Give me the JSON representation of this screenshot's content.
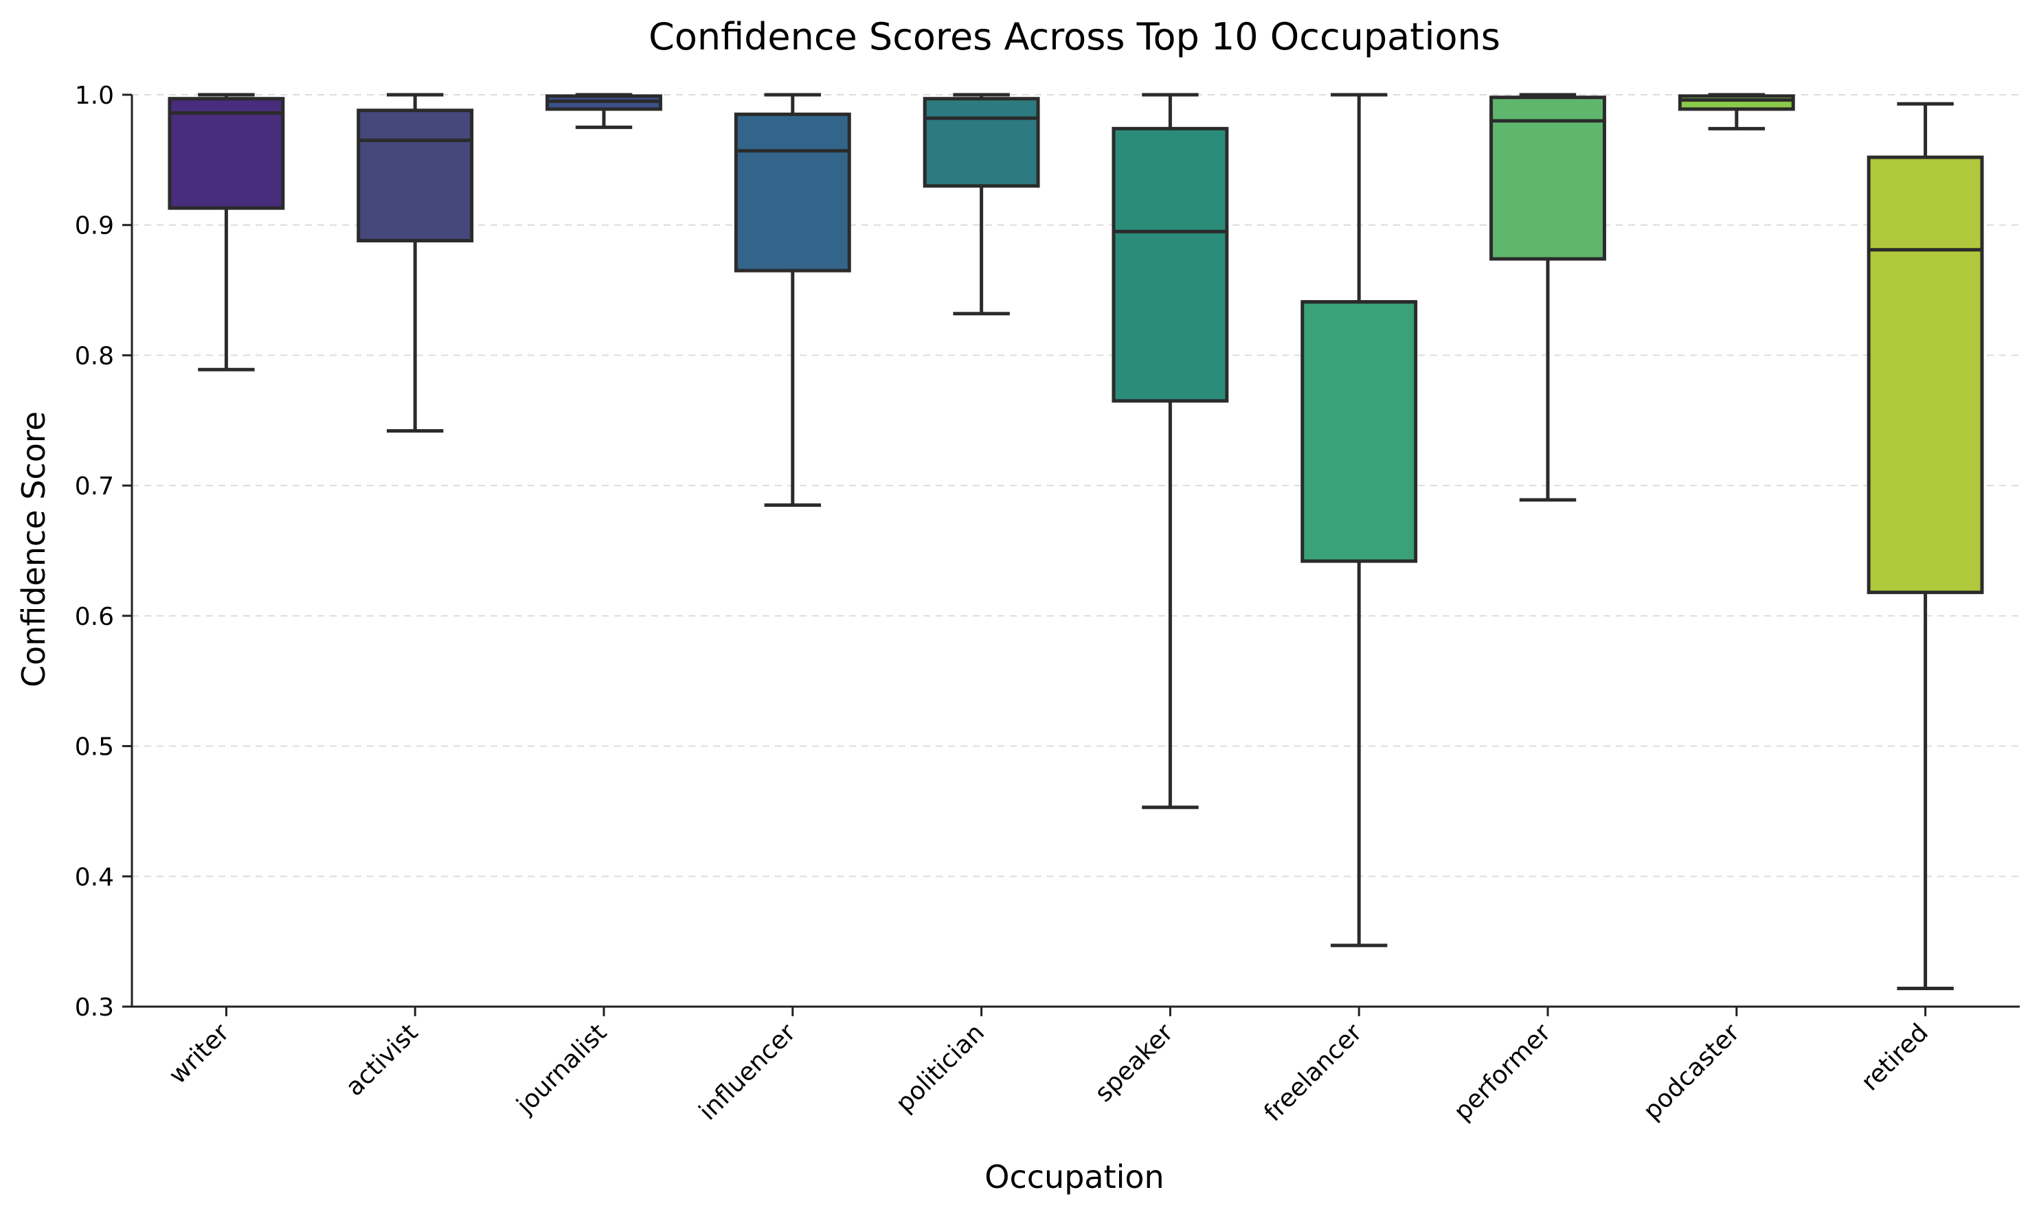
{
  "chart_data": {
    "type": "boxplot",
    "title": "Confidence Scores Across Top 10 Occupations",
    "xlabel": "Occupation",
    "ylabel": "Confidence Score",
    "ylim": [
      0.3,
      1.0
    ],
    "yticks": [
      "0.3",
      "0.4",
      "0.5",
      "0.6",
      "0.7",
      "0.8",
      "0.9",
      "1.0"
    ],
    "grid": "horizontal dashed",
    "categories": [
      "writer",
      "activist",
      "journalist",
      "influencer",
      "politician",
      "speaker",
      "freelancer",
      "performer",
      "podcaster",
      "retired"
    ],
    "boxes": [
      {
        "category": "writer",
        "whisker_low": 0.789,
        "q1": 0.913,
        "median": 0.986,
        "q3": 0.997,
        "whisker_high": 1.0,
        "color": "#472d7b"
      },
      {
        "category": "activist",
        "whisker_low": 0.742,
        "q1": 0.888,
        "median": 0.965,
        "q3": 0.988,
        "whisker_high": 1.0,
        "color": "#46477b"
      },
      {
        "category": "journalist",
        "whisker_low": 0.975,
        "q1": 0.989,
        "median": 0.995,
        "q3": 0.999,
        "whisker_high": 1.0,
        "color": "#3b528b"
      },
      {
        "category": "influencer",
        "whisker_low": 0.685,
        "q1": 0.865,
        "median": 0.957,
        "q3": 0.985,
        "whisker_high": 1.0,
        "color": "#33658a"
      },
      {
        "category": "politician",
        "whisker_low": 0.832,
        "q1": 0.93,
        "median": 0.982,
        "q3": 0.997,
        "whisker_high": 1.0,
        "color": "#2d7a80"
      },
      {
        "category": "speaker",
        "whisker_low": 0.453,
        "q1": 0.765,
        "median": 0.895,
        "q3": 0.974,
        "whisker_high": 1.0,
        "color": "#2b8c7a"
      },
      {
        "category": "freelancer",
        "whisker_low": 0.347,
        "q1": 0.642,
        "median": 0.841,
        "q3": 0.841,
        "whisker_high": 1.0,
        "color": "#3aa178"
      },
      {
        "category": "performer",
        "whisker_low": 0.689,
        "q1": 0.874,
        "median": 0.98,
        "q3": 0.998,
        "whisker_high": 1.0,
        "color": "#5fb76e"
      },
      {
        "category": "podcaster",
        "whisker_low": 0.974,
        "q1": 0.989,
        "median": 0.996,
        "q3": 0.999,
        "whisker_high": 1.0,
        "color": "#8cca4a"
      },
      {
        "category": "retired",
        "whisker_low": 0.314,
        "q1": 0.618,
        "median": 0.881,
        "q3": 0.952,
        "whisker_high": 0.993,
        "color": "#b0c83b"
      }
    ]
  }
}
